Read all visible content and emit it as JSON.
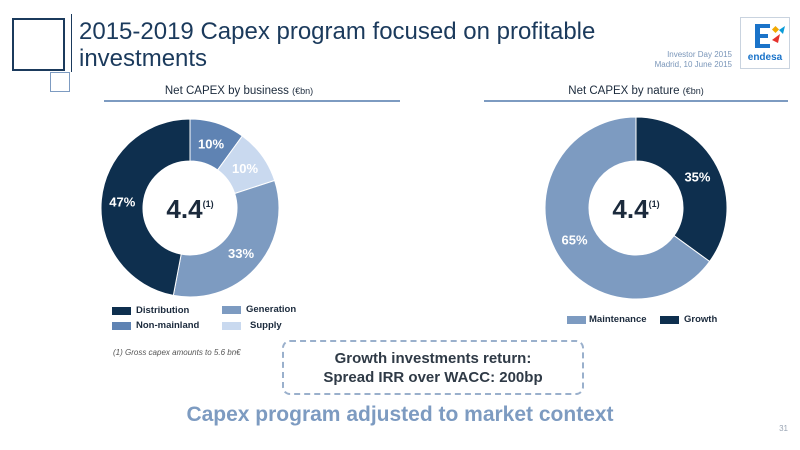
{
  "header": {
    "title_line1": "2015-2019 Capex program focused on profitable",
    "title_line2": "investments",
    "event_line1": "Investor Day 2015",
    "event_line2": "Madrid, 10 June 2015",
    "logo_text": "endesa"
  },
  "colors": {
    "navy": "#0e2f4e",
    "mid_blue": "#7d9bc1",
    "steel_blue": "#5f83b3",
    "light_blue": "#c9d9ef",
    "accent_text": "#7d9bc1"
  },
  "chart_data": [
    {
      "type": "pie",
      "title": "Net CAPEX by business",
      "unit": "(€bn)",
      "center_value": "4.4",
      "center_note": "(1)",
      "slices": [
        {
          "name": "Non-mainland",
          "value": 10,
          "label": "10%",
          "color": "#5f83b3"
        },
        {
          "name": "Supply",
          "value": 10,
          "label": "10%",
          "color": "#c9d9ef"
        },
        {
          "name": "Generation",
          "value": 33,
          "label": "33%",
          "color": "#7d9bc1"
        },
        {
          "name": "Distribution",
          "value": 47,
          "label": "47%",
          "color": "#0e2f4e"
        }
      ],
      "legend": [
        "Distribution",
        "Generation",
        "Non-mainland",
        "Supply"
      ]
    },
    {
      "type": "pie",
      "title": "Net CAPEX by nature",
      "unit": "(€bn)",
      "center_value": "4.4",
      "center_note": "(1)",
      "slices": [
        {
          "name": "Growth",
          "value": 35,
          "label": "35%",
          "color": "#0e2f4e"
        },
        {
          "name": "Maintenance",
          "value": 65,
          "label": "65%",
          "color": "#7d9bc1"
        }
      ],
      "legend": [
        "Maintenance",
        "Growth"
      ]
    }
  ],
  "footnote": "(1) Gross capex amounts to 5.6 bn€",
  "callout": {
    "line1": "Growth investments return:",
    "line2": "Spread IRR over WACC: 200bp"
  },
  "bottom_message": "Capex program adjusted to market context",
  "page_number": "31"
}
